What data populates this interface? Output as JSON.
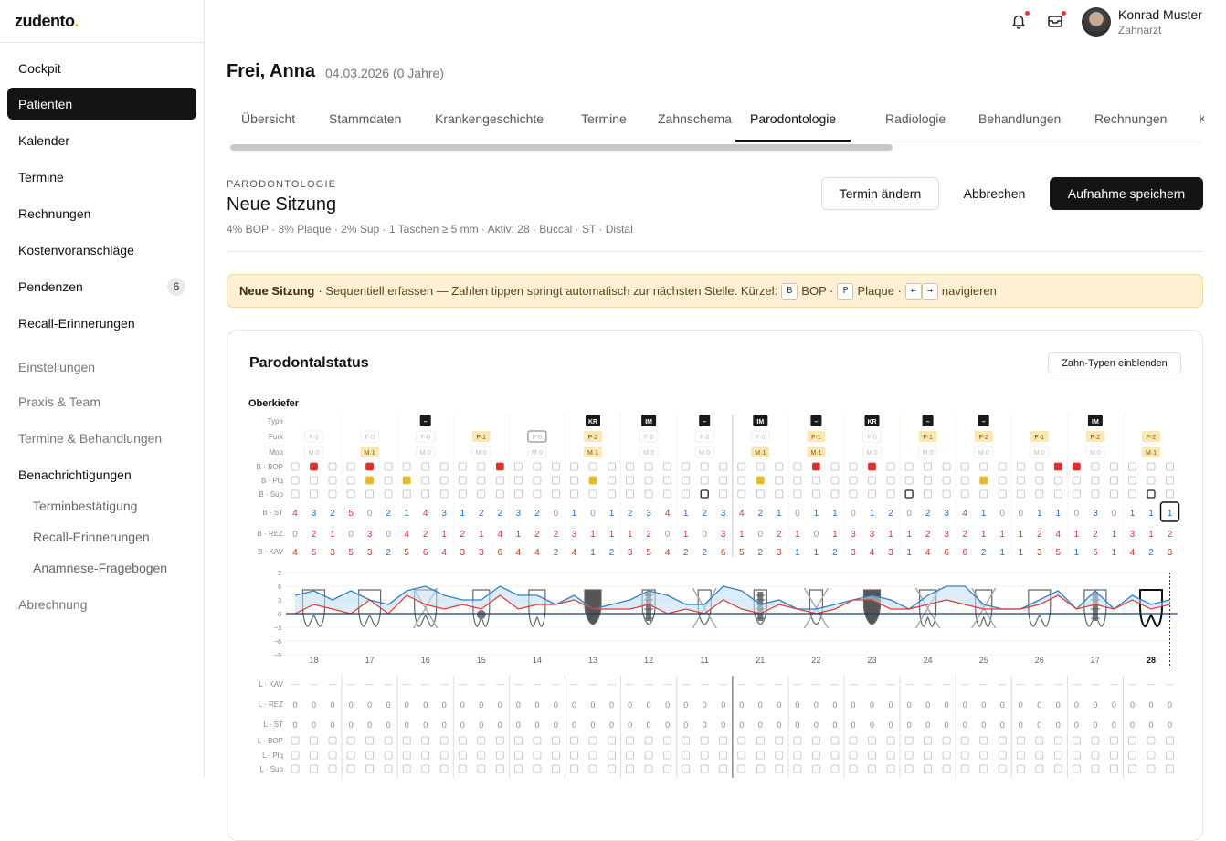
{
  "logo": {
    "text": "zudento",
    "dot": "."
  },
  "sidebar": {
    "items": [
      {
        "label": "Cockpit",
        "kind": "primary"
      },
      {
        "label": "Patienten",
        "kind": "primary",
        "active": true
      },
      {
        "label": "Kalender",
        "kind": "primary"
      },
      {
        "label": "Termine",
        "kind": "primary"
      },
      {
        "label": "Rechnungen",
        "kind": "primary"
      },
      {
        "label": "Kostenvoranschläge",
        "kind": "primary"
      },
      {
        "label": "Pendenzen",
        "kind": "primary",
        "badge": "6"
      },
      {
        "label": "Recall-Erinnerungen",
        "kind": "primary"
      },
      {
        "label": "Einstellungen",
        "kind": "secondary"
      },
      {
        "label": "Praxis & Team",
        "kind": "secondary"
      },
      {
        "label": "Termine & Behandlungen",
        "kind": "secondary"
      },
      {
        "label": "Benachrichtigungen",
        "kind": "primary"
      },
      {
        "label": "Terminbestätigung",
        "kind": "sub"
      },
      {
        "label": "Recall-Erinnerungen",
        "kind": "sub"
      },
      {
        "label": "Anamnese-Fragebogen",
        "kind": "sub"
      },
      {
        "label": "Abrechnung",
        "kind": "secondary"
      }
    ]
  },
  "topbar": {
    "icons": [
      "bell-icon",
      "inbox-icon"
    ],
    "user_name": "Konrad Muster",
    "user_role": "Zahnarzt"
  },
  "patient": {
    "name": "Frei, Anna",
    "dob": "04.03.2026 (0 Jahre)"
  },
  "tabs": [
    {
      "label": "Übersicht"
    },
    {
      "label": "Stammdaten"
    },
    {
      "label": "Krankengeschichte"
    },
    {
      "label": "Termine"
    },
    {
      "label": "Zahnschema"
    },
    {
      "label": "Parodontologie",
      "active": true
    },
    {
      "label": "Radiologie"
    },
    {
      "label": "Behandlungen"
    },
    {
      "label": "Rechnungen"
    },
    {
      "label": "K"
    }
  ],
  "session": {
    "kicker": "PARODONTOLOGIE",
    "title": "Neue Sitzung",
    "summary": "4% BOP · 3% Plaque · 2% Sup · 1 Taschen ≥ 5 mm · Aktiv: 28 · Buccal · ST · Distal",
    "btn_termin": "Termin ändern",
    "btn_cancel": "Abbrechen",
    "btn_save": "Aufnahme speichern"
  },
  "banner": {
    "title": "Neue Sitzung",
    "text": "· Sequentiell erfassen — Zahlen tippen springt automatisch zur nächsten Stelle. Kürzel:",
    "key_b": "B",
    "bop": "BOP ·",
    "key_p": "P",
    "plaque": "Plaque ·",
    "key_left": "←",
    "key_right": "→",
    "navigate": "navigieren"
  },
  "card": {
    "title": "Parodontalstatus",
    "toggle_types": "Zahn-Typen einblenden",
    "jaw": "Oberkiefer"
  },
  "colors": {
    "bop": "#e0302e",
    "plaque": "#e2bb2a",
    "red_text": "#d8342f",
    "blue_text": "#1f6fc7",
    "line_blue": "#2f7fc8",
    "line_red": "#e03a32"
  },
  "chart_data": {
    "type": "table",
    "row_labels_buccal": [
      "Type",
      "Furk",
      "Mob",
      "B · BOP",
      "B · Plq",
      "B · Sup",
      "B · ST",
      "B · REZ",
      "B · KAV"
    ],
    "row_labels_lingual": [
      "L · KAV",
      "L · REZ",
      "L · ST",
      "L · BOP",
      "L · Plq",
      "L · Sup"
    ],
    "y_ticks": [
      "9",
      "6",
      "3",
      "0",
      "−3",
      "−6",
      "−9"
    ],
    "active_tooth": "28",
    "teeth": [
      {
        "n": "18",
        "type": "",
        "furk": "F·0",
        "furk_on": false,
        "mob": "M·0",
        "mob_on": false,
        "bop": [
          0,
          1,
          0
        ],
        "plq": [
          0,
          0,
          0
        ],
        "sup": [
          0,
          0,
          0
        ],
        "st": [
          "4",
          "3",
          "2"
        ],
        "rez": [
          "0",
          "2",
          "1"
        ],
        "kav": [
          "4",
          "5",
          "3"
        ],
        "shape": "molar"
      },
      {
        "n": "17",
        "type": "",
        "furk": "F·0",
        "furk_on": false,
        "mob": "M·1",
        "mob_on": true,
        "bop": [
          0,
          1,
          0
        ],
        "plq": [
          0,
          1,
          0
        ],
        "sup": [
          0,
          0,
          0
        ],
        "st": [
          "5",
          "0",
          "2"
        ],
        "rez": [
          "0",
          "3",
          "0"
        ],
        "kav": [
          "5",
          "3",
          "2"
        ],
        "shape": "molar"
      },
      {
        "n": "16",
        "type": "–",
        "furk": "F·0",
        "furk_on": false,
        "mob": "M·0",
        "mob_on": false,
        "bop": [
          0,
          0,
          0
        ],
        "plq": [
          1,
          0,
          0
        ],
        "sup": [
          0,
          0,
          0
        ],
        "st": [
          "1",
          "4",
          "3"
        ],
        "rez": [
          "4",
          "2",
          "1"
        ],
        "kav": [
          "5",
          "6",
          "4"
        ],
        "shape": "molar",
        "missing": true
      },
      {
        "n": "15",
        "type": "",
        "furk": "F·1",
        "furk_on": true,
        "mob": "M·0",
        "mob_on": false,
        "bop": [
          0,
          0,
          1
        ],
        "plq": [
          0,
          0,
          0
        ],
        "sup": [
          0,
          0,
          0
        ],
        "st": [
          "1",
          "2",
          "2"
        ],
        "rez": [
          "2",
          "1",
          "4"
        ],
        "kav": [
          "3",
          "3",
          "6"
        ],
        "shape": "premolar",
        "caries": true
      },
      {
        "n": "14",
        "type": "",
        "furk": "F·0",
        "furk_on": false,
        "furk_boxed": true,
        "mob": "M·0",
        "mob_on": false,
        "bop": [
          0,
          0,
          0
        ],
        "plq": [
          0,
          0,
          0
        ],
        "sup": [
          0,
          0,
          0
        ],
        "st": [
          "3",
          "2",
          "0"
        ],
        "rez": [
          "1",
          "2",
          "2"
        ],
        "kav": [
          "4",
          "4",
          "2"
        ],
        "shape": "premolar"
      },
      {
        "n": "13",
        "type": "KR",
        "furk": "F·2",
        "furk_on": true,
        "mob": "M·1",
        "mob_on": true,
        "bop": [
          0,
          0,
          0
        ],
        "plq": [
          0,
          1,
          0
        ],
        "sup": [
          0,
          0,
          0
        ],
        "st": [
          "1",
          "0",
          "1"
        ],
        "rez": [
          "3",
          "1",
          "1"
        ],
        "kav": [
          "4",
          "1",
          "2"
        ],
        "shape": "canine",
        "crown": true
      },
      {
        "n": "12",
        "type": "IM",
        "furk": "F·0",
        "furk_on": false,
        "mob": "M·0",
        "mob_on": false,
        "bop": [
          0,
          0,
          0
        ],
        "plq": [
          0,
          0,
          0
        ],
        "sup": [
          0,
          0,
          0
        ],
        "st": [
          "2",
          "3",
          "4"
        ],
        "rez": [
          "1",
          "2",
          "0"
        ],
        "kav": [
          "3",
          "5",
          "4"
        ],
        "shape": "incisor",
        "implant": true
      },
      {
        "n": "11",
        "type": "–",
        "furk": "F·0",
        "furk_on": false,
        "mob": "M·0",
        "mob_on": false,
        "bop": [
          0,
          0,
          0
        ],
        "plq": [
          0,
          0,
          0
        ],
        "sup": [
          0,
          1,
          0
        ],
        "st": [
          "1",
          "2",
          "3"
        ],
        "rez": [
          "1",
          "0",
          "3"
        ],
        "kav": [
          "2",
          "2",
          "6"
        ],
        "shape": "incisor",
        "missing": true
      },
      {
        "n": "21",
        "type": "IM",
        "furk": "F·0",
        "furk_on": false,
        "mob": "M·1",
        "mob_on": true,
        "bop": [
          0,
          0,
          0
        ],
        "plq": [
          0,
          1,
          0
        ],
        "sup": [
          0,
          0,
          0
        ],
        "st": [
          "4",
          "2",
          "1"
        ],
        "rez": [
          "1",
          "0",
          "2"
        ],
        "kav": [
          "5",
          "2",
          "3"
        ],
        "shape": "incisor",
        "implant": true
      },
      {
        "n": "22",
        "type": "–",
        "furk": "F·1",
        "furk_on": true,
        "mob": "M·1",
        "mob_on": true,
        "bop": [
          0,
          1,
          0
        ],
        "plq": [
          0,
          0,
          0
        ],
        "sup": [
          0,
          0,
          0
        ],
        "st": [
          "0",
          "1",
          "1"
        ],
        "rez": [
          "1",
          "0",
          "1"
        ],
        "kav": [
          "1",
          "1",
          "2"
        ],
        "shape": "incisor",
        "missing": true
      },
      {
        "n": "23",
        "type": "KR",
        "furk": "F·0",
        "furk_on": false,
        "mob": "M·0",
        "mob_on": false,
        "bop": [
          0,
          1,
          0
        ],
        "plq": [
          0,
          0,
          0
        ],
        "sup": [
          0,
          0,
          0
        ],
        "st": [
          "0",
          "1",
          "2"
        ],
        "rez": [
          "3",
          "3",
          "1"
        ],
        "kav": [
          "3",
          "4",
          "3"
        ],
        "shape": "canine",
        "crown": true
      },
      {
        "n": "24",
        "type": "–",
        "furk": "F·1",
        "furk_on": true,
        "mob": "M·0",
        "mob_on": false,
        "bop": [
          0,
          0,
          0
        ],
        "plq": [
          0,
          0,
          0
        ],
        "sup": [
          1,
          0,
          0
        ],
        "st": [
          "0",
          "2",
          "3"
        ],
        "rez": [
          "1",
          "2",
          "3"
        ],
        "kav": [
          "1",
          "4",
          "6"
        ],
        "shape": "premolar",
        "missing": true
      },
      {
        "n": "25",
        "type": "–",
        "furk": "F·2",
        "furk_on": true,
        "mob": "M·0",
        "mob_on": false,
        "bop": [
          0,
          0,
          0
        ],
        "plq": [
          0,
          1,
          0
        ],
        "sup": [
          0,
          0,
          0
        ],
        "st": [
          "4",
          "1",
          "0"
        ],
        "rez": [
          "2",
          "1",
          "1"
        ],
        "kav": [
          "6",
          "2",
          "1"
        ],
        "shape": "premolar",
        "missing": true
      },
      {
        "n": "26",
        "type": "",
        "furk": "F·1",
        "furk_on": true,
        "mob": "M·0",
        "mob_on": false,
        "bop": [
          0,
          0,
          1
        ],
        "plq": [
          0,
          0,
          0
        ],
        "sup": [
          0,
          0,
          0
        ],
        "st": [
          "0",
          "1",
          "1"
        ],
        "rez": [
          "1",
          "2",
          "4"
        ],
        "kav": [
          "1",
          "3",
          "5"
        ],
        "shape": "molar"
      },
      {
        "n": "27",
        "type": "IM",
        "furk": "F·2",
        "furk_on": true,
        "mob": "M·0",
        "mob_on": false,
        "bop": [
          1,
          0,
          0
        ],
        "plq": [
          0,
          0,
          0
        ],
        "sup": [
          0,
          0,
          0
        ],
        "st": [
          "0",
          "3",
          "0"
        ],
        "rez": [
          "1",
          "2",
          "1"
        ],
        "kav": [
          "1",
          "5",
          "1"
        ],
        "shape": "molar",
        "implant": true
      },
      {
        "n": "28",
        "type": "",
        "furk": "F·2",
        "furk_on": true,
        "mob": "M·1",
        "mob_on": true,
        "bop": [
          0,
          0,
          0
        ],
        "plq": [
          0,
          0,
          0
        ],
        "sup": [
          0,
          1,
          0
        ],
        "st": [
          "1",
          "1",
          "1"
        ],
        "rez": [
          "3",
          "1",
          "2"
        ],
        "kav": [
          "4",
          "2",
          "3"
        ],
        "shape": "molar",
        "active": true
      }
    ],
    "lingual": {
      "kav": "—",
      "rez": "0",
      "st": "0"
    }
  }
}
